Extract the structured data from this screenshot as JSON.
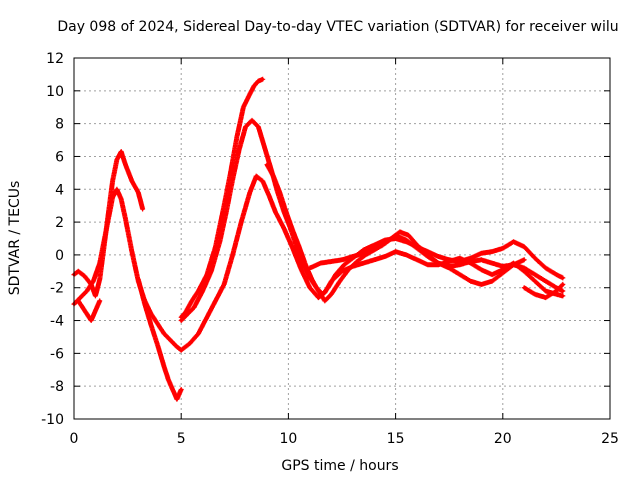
{
  "chart_data": {
    "type": "scatter",
    "title": "Day 098 of 2024, Sidereal Day-to-day VTEC variation (SDTVAR) for receiver wilu",
    "xlabel": "GPS time / hours",
    "ylabel": "SDTVAR / TECUs",
    "xlim": [
      0,
      25
    ],
    "ylim": [
      -10,
      12
    ],
    "xticks": [
      0,
      5,
      10,
      15,
      20,
      25
    ],
    "yticks": [
      -10,
      -8,
      -6,
      -4,
      -2,
      0,
      2,
      4,
      6,
      8,
      10,
      12
    ],
    "grid": true,
    "marker": "+",
    "color": "#ff0000",
    "series": [
      {
        "name": "trace-1",
        "x": [
          0.0,
          0.3,
          0.6,
          0.9,
          1.2,
          1.5,
          1.8,
          2.0,
          2.2,
          2.4,
          2.7,
          3.0,
          3.3,
          3.6,
          3.9,
          4.2,
          4.5,
          4.8,
          5.0
        ],
        "y": [
          -3.0,
          -2.6,
          -2.2,
          -1.6,
          -0.5,
          1.5,
          3.5,
          4.0,
          3.4,
          2.2,
          0.2,
          -1.6,
          -2.8,
          -3.6,
          -4.2,
          -4.8,
          -5.2,
          -5.6,
          -5.8
        ]
      },
      {
        "name": "trace-2",
        "x": [
          5.0,
          5.4,
          5.8,
          6.2,
          6.6,
          7.0,
          7.4,
          7.8,
          8.2,
          8.5,
          8.8,
          9.1,
          9.4,
          9.8,
          10.2,
          10.6,
          11.0,
          11.4,
          11.7,
          12.0,
          12.5,
          13.0,
          13.5,
          14.0,
          14.5,
          15.0,
          15.5,
          16.0,
          16.5,
          17.0,
          17.5,
          18.0,
          18.5,
          19.0,
          19.5,
          20.0,
          20.5,
          21.0,
          21.5,
          22.0,
          22.5,
          22.8
        ],
        "y": [
          -5.8,
          -5.4,
          -4.8,
          -3.8,
          -2.8,
          -1.8,
          0.0,
          2.0,
          3.8,
          4.8,
          4.5,
          3.6,
          2.6,
          1.6,
          0.4,
          -0.9,
          -2.0,
          -2.6,
          -2.3,
          -1.6,
          -1.0,
          -0.7,
          -0.5,
          -0.3,
          -0.1,
          0.2,
          0.0,
          -0.3,
          -0.6,
          -0.6,
          -0.4,
          -0.2,
          -0.5,
          -0.9,
          -1.2,
          -0.9,
          -0.5,
          -1.0,
          -1.6,
          -2.2,
          -2.4,
          -2.5
        ]
      },
      {
        "name": "trace-3",
        "x": [
          0.0,
          0.2,
          0.5,
          0.8,
          1.0,
          1.2,
          1.5,
          1.8,
          2.0,
          2.2,
          2.4,
          2.7,
          3.0,
          3.2
        ],
        "y": [
          -1.2,
          -1.0,
          -1.3,
          -1.8,
          -2.5,
          -1.5,
          1.5,
          4.5,
          5.8,
          6.3,
          5.5,
          4.5,
          3.8,
          2.8
        ]
      },
      {
        "name": "trace-4",
        "x": [
          5.0,
          5.2,
          5.5,
          5.8,
          6.2,
          6.6,
          7.0,
          7.3,
          7.6,
          7.9,
          8.2,
          8.4,
          8.6,
          8.8
        ],
        "y": [
          -3.8,
          -3.5,
          -2.8,
          -2.2,
          -1.2,
          0.5,
          3.0,
          5.0,
          7.2,
          9.0,
          9.8,
          10.3,
          10.6,
          10.7
        ]
      },
      {
        "name": "trace-5",
        "x": [
          3.0,
          3.3,
          3.6,
          3.9,
          4.2,
          4.4,
          4.6,
          4.8,
          5.0
        ],
        "y": [
          -1.5,
          -3.0,
          -4.3,
          -5.5,
          -6.8,
          -7.6,
          -8.2,
          -8.8,
          -8.2
        ]
      },
      {
        "name": "trace-6",
        "x": [
          5.0,
          5.3,
          5.6,
          6.0,
          6.4,
          6.8,
          7.1,
          7.4,
          7.7,
          8.0,
          8.3,
          8.6,
          8.9,
          9.2,
          9.5,
          9.8,
          10.1,
          10.4,
          10.7,
          11.0,
          11.3,
          11.6,
          11.9,
          12.2,
          12.6,
          13.0,
          13.5,
          14.0,
          14.5,
          15.0,
          15.5,
          16.0,
          16.5,
          17.0,
          17.5,
          18.0,
          18.5,
          19.0,
          19.5,
          20.0,
          20.5,
          21.0,
          21.5,
          22.0,
          22.5,
          22.8
        ],
        "y": [
          -4.0,
          -3.6,
          -3.2,
          -2.2,
          -1.0,
          0.8,
          2.6,
          4.6,
          6.4,
          7.8,
          8.2,
          7.8,
          6.5,
          5.2,
          3.8,
          2.6,
          1.6,
          0.4,
          -0.6,
          -1.4,
          -2.0,
          -2.4,
          -1.9,
          -1.2,
          -0.6,
          -0.2,
          0.3,
          0.6,
          0.9,
          1.0,
          0.8,
          0.5,
          0.2,
          -0.1,
          -0.3,
          -0.4,
          -0.2,
          0.1,
          0.2,
          0.4,
          0.8,
          0.5,
          -0.2,
          -0.8,
          -1.2,
          -1.4
        ]
      },
      {
        "name": "trace-7",
        "x": [
          9.0,
          9.3,
          9.6,
          9.9,
          10.2,
          10.5,
          10.8,
          11.1,
          11.4,
          11.7,
          12.0,
          12.4,
          12.8,
          13.2,
          13.6,
          14.0,
          14.4,
          14.8,
          15.2,
          15.6,
          16.0,
          16.5,
          17.0,
          17.5,
          18.0,
          18.5,
          19.0,
          19.5,
          20.0,
          20.5,
          21.0
        ],
        "y": [
          5.5,
          4.8,
          3.8,
          2.6,
          1.5,
          0.5,
          -0.6,
          -1.5,
          -2.2,
          -2.8,
          -2.4,
          -1.6,
          -0.9,
          -0.4,
          0.0,
          0.3,
          0.6,
          1.0,
          1.4,
          1.2,
          0.6,
          0.0,
          -0.5,
          -0.8,
          -1.2,
          -1.6,
          -1.8,
          -1.6,
          -1.1,
          -0.6,
          -0.3
        ]
      },
      {
        "name": "trace-8",
        "x": [
          11.0,
          11.5,
          12.0,
          12.5,
          13.0,
          13.5,
          14.0,
          14.5,
          15.0,
          15.5,
          16.0,
          16.5,
          17.0,
          17.5,
          18.0,
          18.5,
          19.0,
          19.5,
          20.0,
          20.5,
          21.0,
          21.5,
          22.0,
          22.5,
          22.8
        ],
        "y": [
          -0.8,
          -0.5,
          -0.4,
          -0.3,
          -0.1,
          0.1,
          0.4,
          0.7,
          1.2,
          0.9,
          0.4,
          -0.1,
          -0.5,
          -0.7,
          -0.6,
          -0.4,
          -0.3,
          -0.5,
          -0.7,
          -0.6,
          -0.8,
          -1.2,
          -1.6,
          -2.0,
          -2.2
        ]
      },
      {
        "name": "trace-9",
        "x": [
          0.2,
          0.4,
          0.6,
          0.8,
          1.0,
          1.2
        ],
        "y": [
          -2.8,
          -3.2,
          -3.6,
          -4.0,
          -3.4,
          -2.8
        ]
      },
      {
        "name": "trace-10",
        "x": [
          21.0,
          21.5,
          22.0,
          22.5,
          22.8
        ],
        "y": [
          -2.0,
          -2.4,
          -2.6,
          -2.2,
          -1.8
        ]
      }
    ]
  }
}
